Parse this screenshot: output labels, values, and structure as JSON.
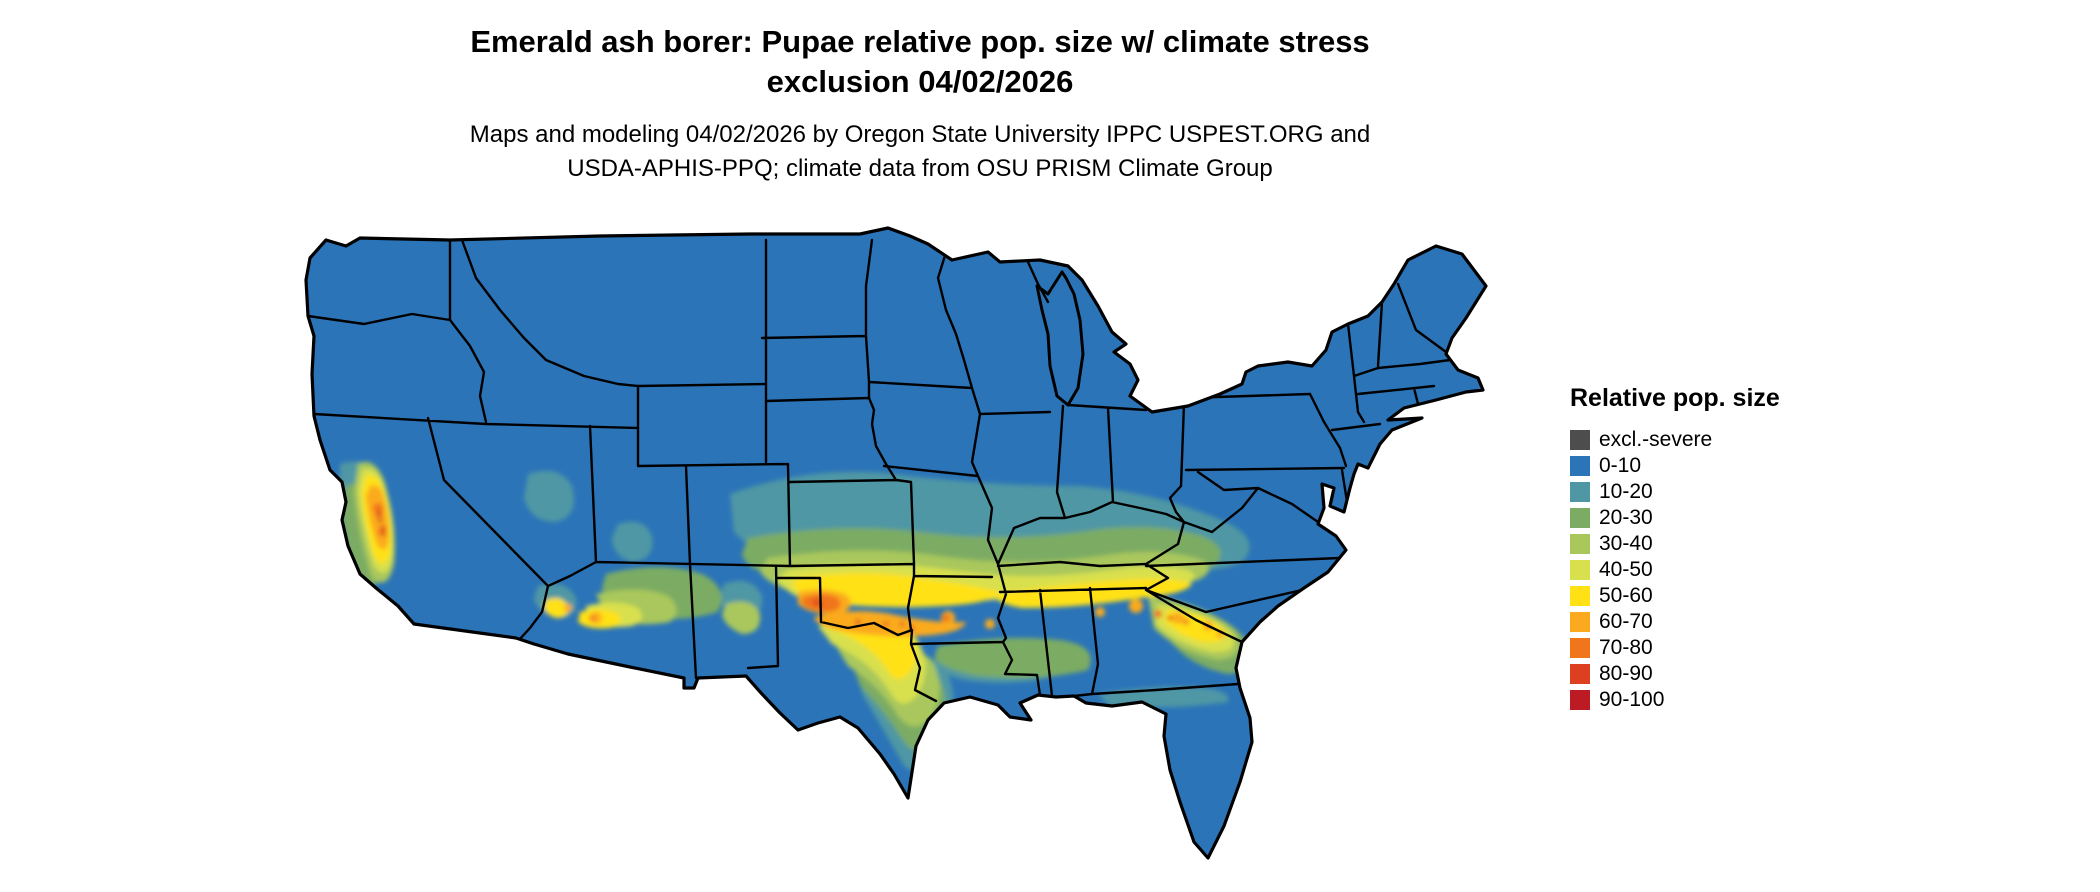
{
  "title": {
    "line1": "Emerald ash borer: Pupae relative pop. size w/ climate stress",
    "line2": "exclusion 04/02/2026"
  },
  "subtitle": {
    "line1": "Maps and modeling 04/02/2026 by Oregon State University IPPC USPEST.ORG and",
    "line2": "USDA-APHIS-PPQ; climate data from OSU PRISM Climate Group"
  },
  "legend": {
    "title": "Relative pop. size",
    "items": [
      {
        "label": "excl.-severe",
        "color": "#4d4d4d"
      },
      {
        "label": "0-10",
        "color": "#2b74b8"
      },
      {
        "label": "10-20",
        "color": "#4f97a4"
      },
      {
        "label": "20-30",
        "color": "#7cac64"
      },
      {
        "label": "30-40",
        "color": "#a9c75b"
      },
      {
        "label": "40-50",
        "color": "#d9e04e"
      },
      {
        "label": "50-60",
        "color": "#ffe115"
      },
      {
        "label": "60-70",
        "color": "#fbaa1f"
      },
      {
        "label": "70-80",
        "color": "#f0751b"
      },
      {
        "label": "80-90",
        "color": "#dd3f21"
      },
      {
        "label": "90-100",
        "color": "#bd1b24"
      }
    ]
  },
  "map": {
    "region": "Contiguous United States",
    "border_color": "#000000",
    "background_color": "#ffffff",
    "base_value_class": "0-10",
    "description": "Raster heat map of relative population size: blue (0-10) across the northern states, mountain west, Florida peninsula and coasts; warm yellow-orange band across the southern plains (Oklahoma/Texas Red River region), Arkansas, Tennessee, northern Mississippi/Alabama/Georgia and South Carolina; hotspots in California's Central Valley and southern Arizona."
  }
}
